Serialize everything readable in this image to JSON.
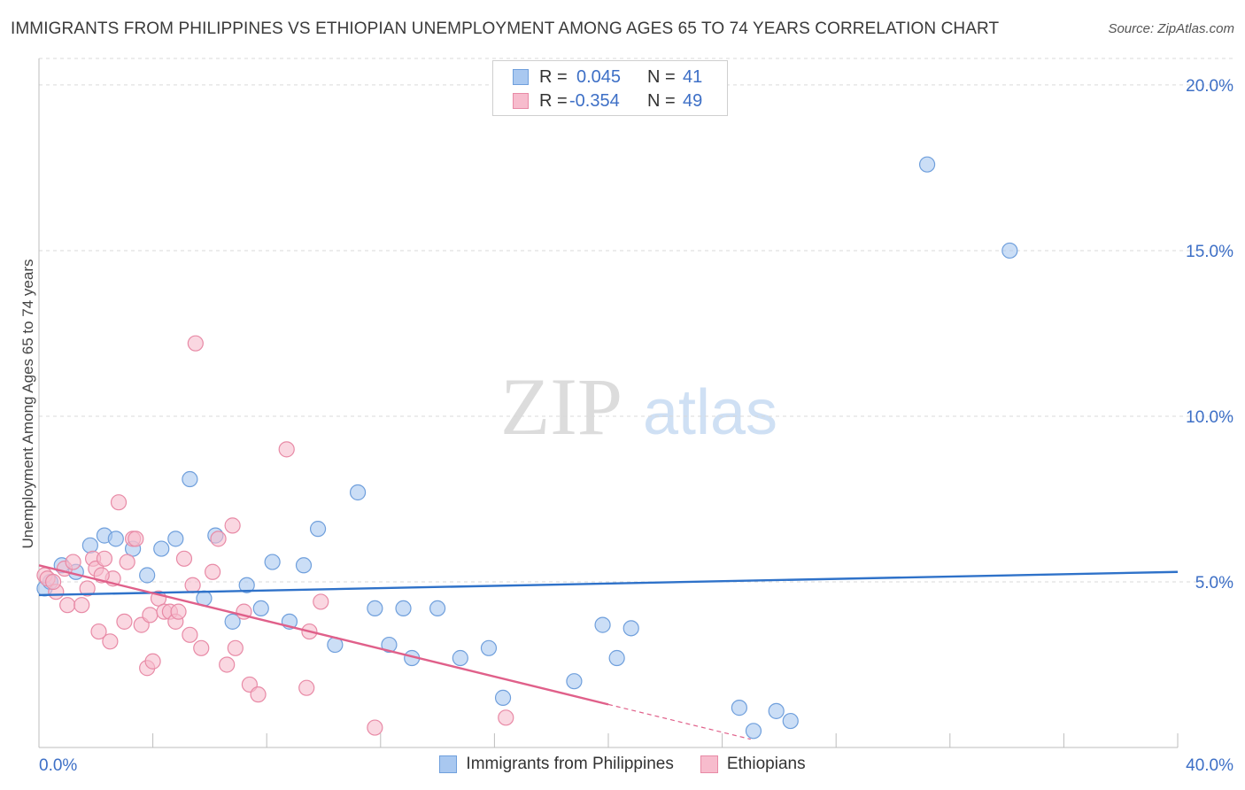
{
  "header": {
    "title": "IMMIGRANTS FROM PHILIPPINES VS ETHIOPIAN UNEMPLOYMENT AMONG AGES 65 TO 74 YEARS CORRELATION CHART",
    "source": "Source: ZipAtlas.com"
  },
  "watermark": {
    "zip": "ZIP",
    "atlas": "atlas"
  },
  "legend": {
    "rows": [
      {
        "r_label": "R =",
        "r_value": "0.045",
        "n_label": "N =",
        "n_value": "41",
        "color": "#a9c8f0",
        "border": "#6f9fdc"
      },
      {
        "r_label": "R =",
        "r_value": "-0.354",
        "n_label": "N =",
        "n_value": "49",
        "color": "#f7bccd",
        "border": "#e88aa6"
      }
    ]
  },
  "bottom_legend": {
    "items": [
      {
        "label": "Immigrants from Philippines",
        "color": "#a9c8f0",
        "border": "#6f9fdc"
      },
      {
        "label": "Ethiopians",
        "color": "#f7bccd",
        "border": "#e88aa6"
      }
    ]
  },
  "chart_data": {
    "type": "scatter",
    "title": "IMMIGRANTS FROM PHILIPPINES VS ETHIOPIAN UNEMPLOYMENT AMONG AGES 65 TO 74 YEARS CORRELATION CHART",
    "xlabel": "",
    "ylabel": "Unemployment Among Ages 65 to 74 years",
    "xlim": [
      0,
      40
    ],
    "ylim": [
      0,
      20.8
    ],
    "x_tick_labels": [
      "0.0%",
      "40.0%"
    ],
    "y_ticks": [
      5,
      10,
      15,
      20
    ],
    "y_tick_labels": [
      "5.0%",
      "10.0%",
      "15.0%",
      "20.0%"
    ],
    "grid": true,
    "series": [
      {
        "name": "Immigrants from Philippines",
        "color": "#6f9fdc",
        "fill": "#a9c8f0",
        "trend_color": "#2f72c9",
        "trend": {
          "x0": 0,
          "y0": 4.6,
          "x1": 40,
          "y1": 5.3
        },
        "points": [
          [
            0.2,
            4.8
          ],
          [
            0.4,
            5.0
          ],
          [
            0.8,
            5.5
          ],
          [
            1.3,
            5.3
          ],
          [
            1.8,
            6.1
          ],
          [
            2.3,
            6.4
          ],
          [
            2.7,
            6.3
          ],
          [
            3.3,
            6.0
          ],
          [
            3.8,
            5.2
          ],
          [
            4.3,
            6.0
          ],
          [
            4.8,
            6.3
          ],
          [
            5.3,
            8.1
          ],
          [
            5.8,
            4.5
          ],
          [
            6.2,
            6.4
          ],
          [
            6.8,
            3.8
          ],
          [
            7.3,
            4.9
          ],
          [
            7.8,
            4.2
          ],
          [
            8.2,
            5.6
          ],
          [
            8.8,
            3.8
          ],
          [
            9.3,
            5.5
          ],
          [
            9.8,
            6.6
          ],
          [
            10.4,
            3.1
          ],
          [
            11.2,
            7.7
          ],
          [
            11.8,
            4.2
          ],
          [
            12.3,
            3.1
          ],
          [
            12.8,
            4.2
          ],
          [
            13.1,
            2.7
          ],
          [
            14.0,
            4.2
          ],
          [
            14.8,
            2.7
          ],
          [
            15.8,
            3.0
          ],
          [
            16.3,
            1.5
          ],
          [
            18.8,
            2.0
          ],
          [
            19.8,
            3.7
          ],
          [
            20.3,
            2.7
          ],
          [
            20.8,
            3.6
          ],
          [
            24.6,
            1.2
          ],
          [
            25.1,
            0.5
          ],
          [
            25.9,
            1.1
          ],
          [
            26.4,
            0.8
          ],
          [
            31.2,
            17.6
          ],
          [
            34.1,
            15.0
          ]
        ]
      },
      {
        "name": "Ethiopians",
        "color": "#e88aa6",
        "fill": "#f7bccd",
        "trend_color": "#e0608a",
        "trend": {
          "x0": 0,
          "y0": 5.5,
          "x1": 20.0,
          "y1": 1.3
        },
        "trend_dash": {
          "x0": 20.0,
          "y0": 1.3,
          "x1": 25.0,
          "y1": 0.25
        },
        "points": [
          [
            0.2,
            5.2
          ],
          [
            0.6,
            4.7
          ],
          [
            0.9,
            5.4
          ],
          [
            1.0,
            4.3
          ],
          [
            1.5,
            4.3
          ],
          [
            1.7,
            4.8
          ],
          [
            1.9,
            5.7
          ],
          [
            2.0,
            5.4
          ],
          [
            2.1,
            3.5
          ],
          [
            2.3,
            5.7
          ],
          [
            2.5,
            3.2
          ],
          [
            2.6,
            5.1
          ],
          [
            2.8,
            7.4
          ],
          [
            3.0,
            3.8
          ],
          [
            3.1,
            5.6
          ],
          [
            3.3,
            6.3
          ],
          [
            3.4,
            6.3
          ],
          [
            3.6,
            3.7
          ],
          [
            3.8,
            2.4
          ],
          [
            3.9,
            4.0
          ],
          [
            4.0,
            2.6
          ],
          [
            4.2,
            4.5
          ],
          [
            4.4,
            4.1
          ],
          [
            4.6,
            4.1
          ],
          [
            4.8,
            3.8
          ],
          [
            4.9,
            4.1
          ],
          [
            5.1,
            5.7
          ],
          [
            5.3,
            3.4
          ],
          [
            5.4,
            4.9
          ],
          [
            5.5,
            12.2
          ],
          [
            5.7,
            3.0
          ],
          [
            6.1,
            5.3
          ],
          [
            6.3,
            6.3
          ],
          [
            6.6,
            2.5
          ],
          [
            6.8,
            6.7
          ],
          [
            6.9,
            3.0
          ],
          [
            7.2,
            4.1
          ],
          [
            7.4,
            1.9
          ],
          [
            7.7,
            1.6
          ],
          [
            8.7,
            9.0
          ],
          [
            9.4,
            1.8
          ],
          [
            9.5,
            3.5
          ],
          [
            9.9,
            4.4
          ],
          [
            11.8,
            0.6
          ],
          [
            16.4,
            0.9
          ],
          [
            0.3,
            5.1
          ],
          [
            0.5,
            5.0
          ],
          [
            1.2,
            5.6
          ],
          [
            2.2,
            5.2
          ]
        ]
      }
    ]
  }
}
